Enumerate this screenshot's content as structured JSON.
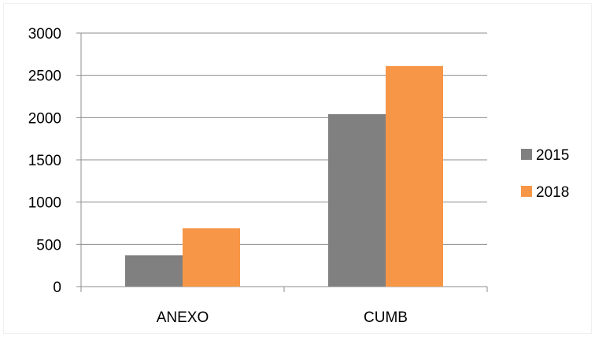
{
  "chart_data": {
    "type": "bar",
    "categories": [
      "ANEXO",
      "CUMB"
    ],
    "series": [
      {
        "name": "2015",
        "values": [
          370,
          2040
        ],
        "color": "#808080"
      },
      {
        "name": "2018",
        "values": [
          690,
          2610
        ],
        "color": "#F79646"
      }
    ],
    "ylim": [
      0,
      3000
    ],
    "yticks": [
      0,
      500,
      1000,
      1500,
      2000,
      2500,
      3000
    ],
    "grid": true,
    "legend": "right"
  }
}
